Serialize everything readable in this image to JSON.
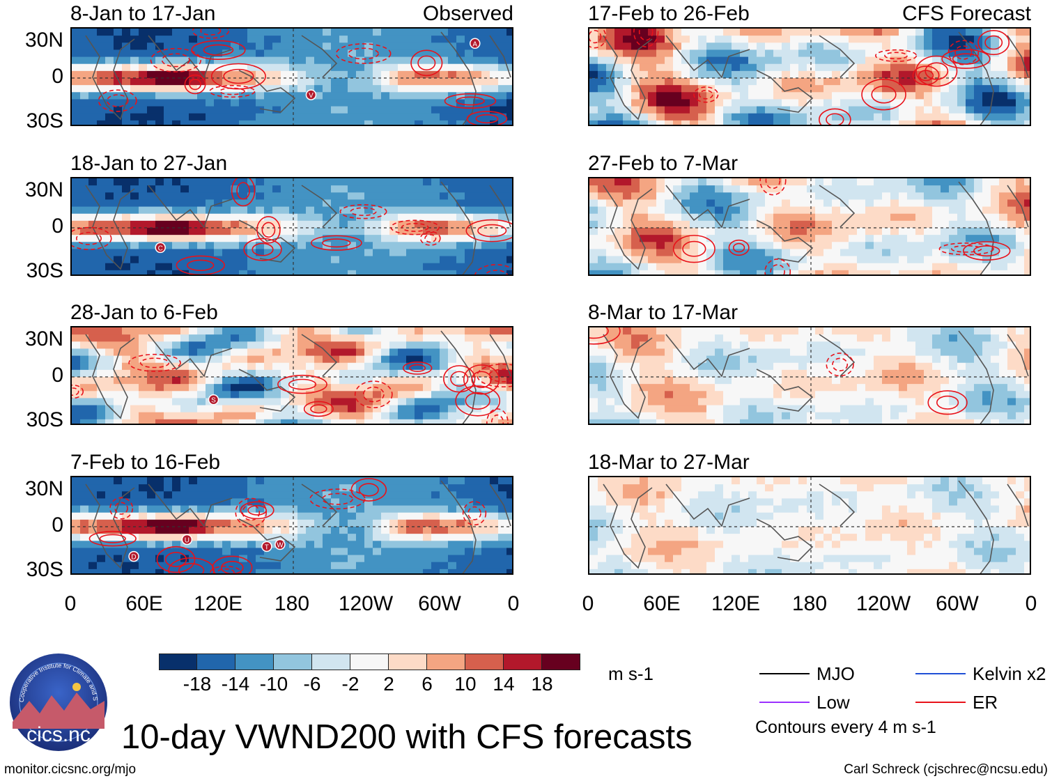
{
  "chart_data": {
    "type": "heatmap",
    "title": "10-day VWND200 with CFS forecasts",
    "units": "m s-1",
    "panel_labels": {
      "observed": "Observed",
      "forecast": "CFS Forecast"
    },
    "yticks": [
      "30N",
      "0",
      "30S"
    ],
    "xticks": [
      "0",
      "60E",
      "120E",
      "180",
      "120W",
      "60W",
      "0"
    ],
    "colorbar": {
      "levels": [
        "-18",
        "-14",
        "-10",
        "-6",
        "-2",
        "2",
        "6",
        "10",
        "14",
        "18"
      ],
      "colors": [
        "#08306b",
        "#2166ac",
        "#4393c3",
        "#92c5de",
        "#d1e5f0",
        "#f7f7f7",
        "#fddbc7",
        "#f4a582",
        "#d6604d",
        "#b2182b",
        "#67001f"
      ]
    },
    "panels": [
      {
        "title": "8-Jan to 17-Jan",
        "column": "observed",
        "mode": "obs",
        "marks": [
          {
            "l": "A",
            "x": 0.91,
            "y": 0.15
          },
          {
            "l": "V",
            "x": 0.54,
            "y": 0.67
          }
        ]
      },
      {
        "title": "18-Jan to 27-Jan",
        "column": "observed",
        "mode": "obs",
        "marks": [
          {
            "l": "C",
            "x": 0.2,
            "y": 0.7
          }
        ]
      },
      {
        "title": "28-Jan to 6-Feb",
        "column": "observed",
        "mode": "mixed",
        "marks": [
          {
            "l": "S",
            "x": 0.32,
            "y": 0.73
          }
        ]
      },
      {
        "title": "7-Feb to 16-Feb",
        "column": "observed",
        "mode": "obs",
        "marks": [
          {
            "l": "D",
            "x": 0.14,
            "y": 0.8
          },
          {
            "l": "U",
            "x": 0.26,
            "y": 0.63
          },
          {
            "l": "T",
            "x": 0.44,
            "y": 0.7
          },
          {
            "l": "W",
            "x": 0.47,
            "y": 0.68
          }
        ]
      },
      {
        "title": "17-Feb to 26-Feb",
        "column": "forecast",
        "mode": "fc1",
        "marks": []
      },
      {
        "title": "27-Feb to 7-Mar",
        "column": "forecast",
        "mode": "fc2",
        "marks": []
      },
      {
        "title": "8-Mar to 17-Mar",
        "column": "forecast",
        "mode": "fc3",
        "marks": []
      },
      {
        "title": "18-Mar to 27-Mar",
        "column": "forecast",
        "mode": "fc4",
        "marks": []
      }
    ],
    "legend": [
      {
        "label": "MJO",
        "color": "#000000"
      },
      {
        "label": "Kelvin x2",
        "color": "#1f4fd6"
      },
      {
        "label": "Low",
        "color": "#9b30ff"
      },
      {
        "label": "ER",
        "color": "#e8121a"
      }
    ],
    "contour_note": "Contours every 4 m s-1"
  },
  "footer": {
    "left": "monitor.cicsnc.org/mjo",
    "right": "Carl Schreck (cjschrec@ncsu.edu)"
  },
  "logo": {
    "text": "cics.nc",
    "ring_text": "Cooperative Institute for Climate and Satellites"
  }
}
